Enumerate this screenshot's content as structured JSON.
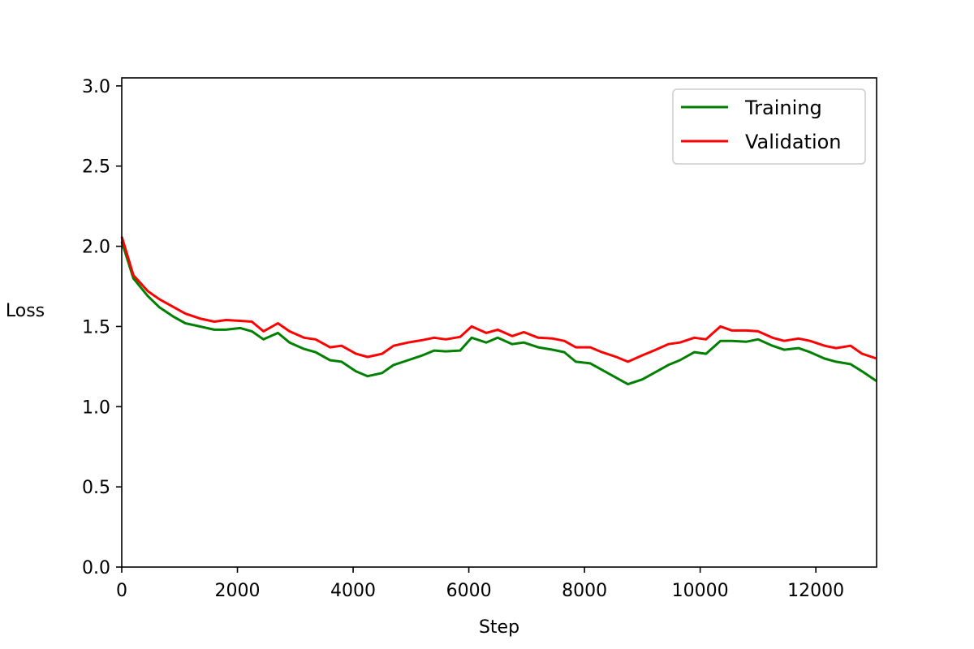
{
  "chart_data": {
    "type": "line",
    "title": "",
    "xlabel": "Step",
    "ylabel": "Loss",
    "xlim": [
      0,
      13050
    ],
    "ylim": [
      0.0,
      3.05
    ],
    "xticks": [
      0,
      2000,
      4000,
      6000,
      8000,
      10000,
      12000
    ],
    "xtick_labels": [
      "0",
      "2000",
      "4000",
      "6000",
      "8000",
      "10000",
      "12000"
    ],
    "yticks": [
      0.0,
      0.5,
      1.0,
      1.5,
      2.0,
      2.5,
      3.0
    ],
    "ytick_labels": [
      "0.0",
      "0.5",
      "1.0",
      "1.5",
      "2.0",
      "2.5",
      "3.0"
    ],
    "grid": false,
    "legend_position": "top-right",
    "x": [
      0,
      200,
      450,
      650,
      900,
      1100,
      1350,
      1600,
      1800,
      2050,
      2250,
      2450,
      2700,
      2900,
      3150,
      3350,
      3600,
      3800,
      4050,
      4250,
      4500,
      4700,
      4950,
      5200,
      5400,
      5600,
      5850,
      6050,
      6300,
      6500,
      6750,
      6950,
      7200,
      7450,
      7650,
      7850,
      8100,
      8300,
      8550,
      8750,
      9000,
      9200,
      9450,
      9650,
      9900,
      10100,
      10350,
      10550,
      10800,
      11000,
      11250,
      11450,
      11700,
      11900,
      12150,
      12350,
      12600,
      12800,
      13050
    ],
    "series": [
      {
        "name": "Training",
        "color": "#008000",
        "values": [
          2.03,
          1.8,
          1.69,
          1.62,
          1.56,
          1.52,
          1.5,
          1.48,
          1.48,
          1.49,
          1.47,
          1.42,
          1.46,
          1.4,
          1.36,
          1.34,
          1.29,
          1.28,
          1.22,
          1.19,
          1.21,
          1.26,
          1.29,
          1.32,
          1.35,
          1.345,
          1.35,
          1.43,
          1.4,
          1.43,
          1.39,
          1.4,
          1.37,
          1.355,
          1.34,
          1.28,
          1.27,
          1.23,
          1.18,
          1.14,
          1.17,
          1.21,
          1.26,
          1.29,
          1.34,
          1.33,
          1.41,
          1.41,
          1.405,
          1.42,
          1.38,
          1.355,
          1.365,
          1.34,
          1.3,
          1.28,
          1.265,
          1.22,
          1.16
        ]
      },
      {
        "name": "Validation",
        "color": "#ff0000",
        "values": [
          2.06,
          1.82,
          1.72,
          1.67,
          1.62,
          1.58,
          1.55,
          1.53,
          1.54,
          1.535,
          1.53,
          1.47,
          1.52,
          1.47,
          1.43,
          1.42,
          1.37,
          1.38,
          1.33,
          1.31,
          1.33,
          1.38,
          1.4,
          1.415,
          1.43,
          1.42,
          1.435,
          1.5,
          1.46,
          1.48,
          1.44,
          1.465,
          1.43,
          1.425,
          1.41,
          1.37,
          1.37,
          1.34,
          1.31,
          1.28,
          1.32,
          1.35,
          1.39,
          1.4,
          1.43,
          1.42,
          1.5,
          1.475,
          1.475,
          1.47,
          1.43,
          1.41,
          1.425,
          1.41,
          1.38,
          1.365,
          1.38,
          1.33,
          1.3
        ]
      }
    ]
  }
}
